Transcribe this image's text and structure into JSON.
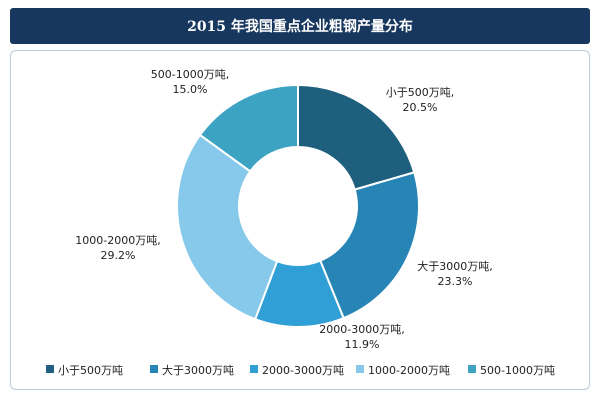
{
  "chart_data": {
    "type": "pie",
    "title": "2015 年我国重点企业粗钢产量分布",
    "categories": [
      "小于500万吨",
      "大于3000万吨",
      "2000-3000万吨",
      "1000-2000万吨",
      "500-1000万吨"
    ],
    "values": [
      20.5,
      23.3,
      11.9,
      29.2,
      15.0
    ],
    "value_labels": [
      "20.5%",
      "23.3%",
      "11.9%",
      "29.2%",
      "15.0%"
    ],
    "colors": [
      "#1f5f7e",
      "#2685b5",
      "#2f9fd6",
      "#87c9ea",
      "#3da3c2"
    ],
    "legend_position": "bottom"
  }
}
